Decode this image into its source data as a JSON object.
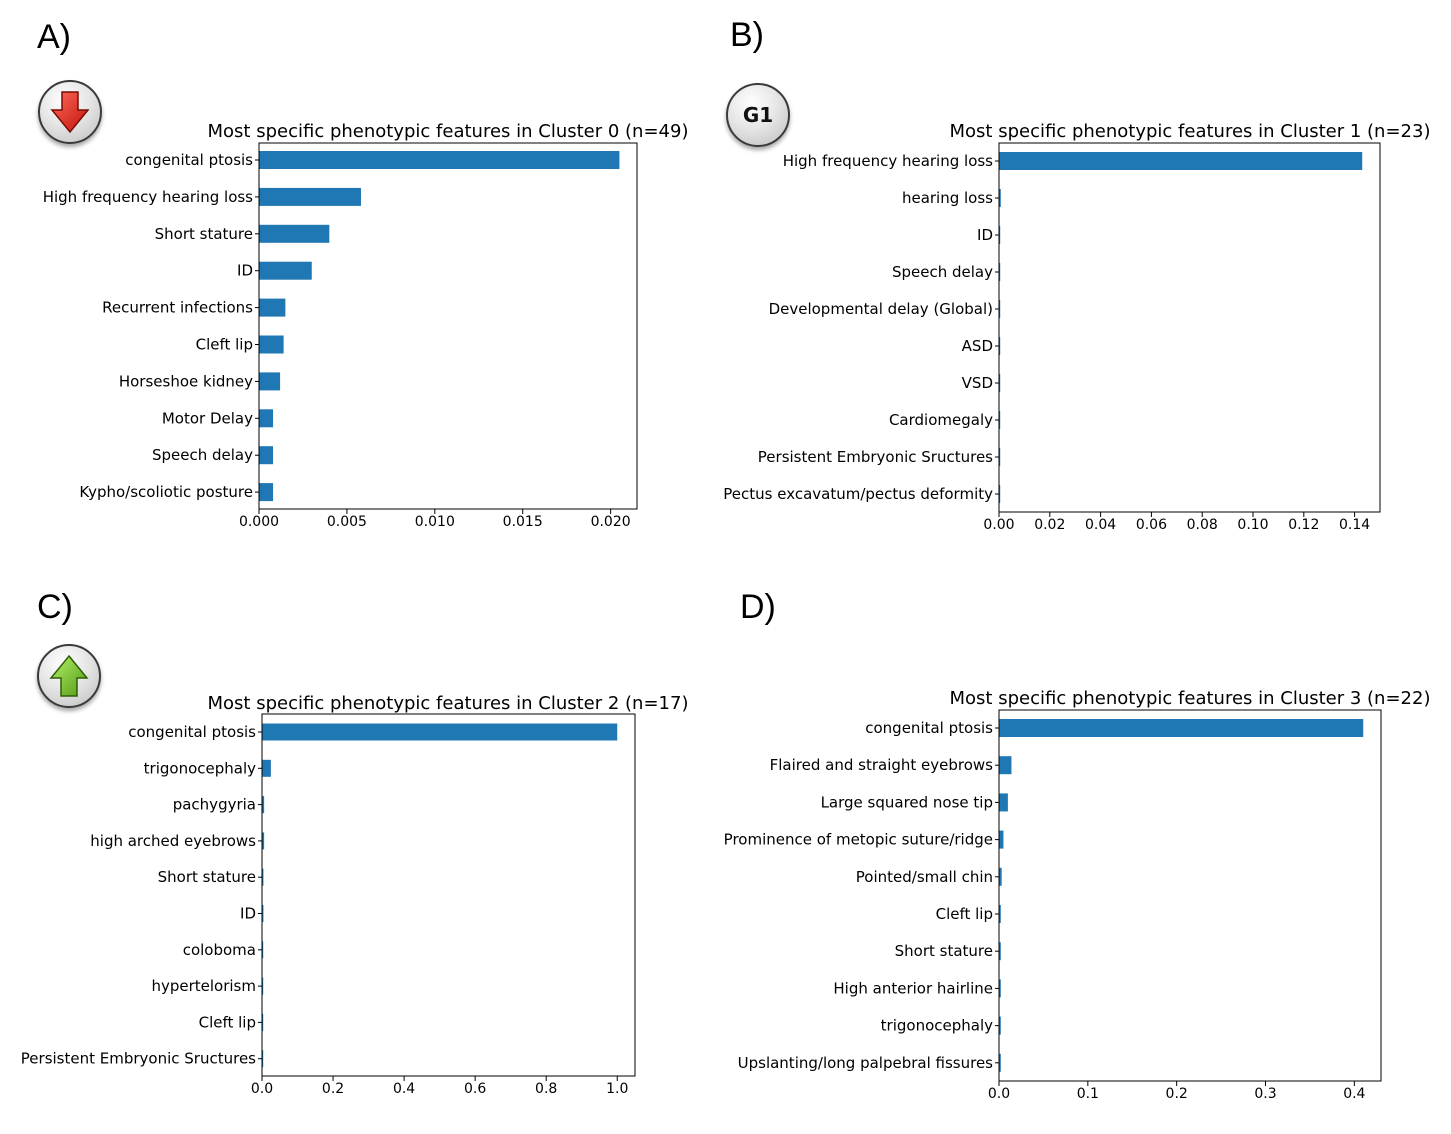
{
  "panels": {
    "a": {
      "letter": "A)"
    },
    "b": {
      "letter": "B)",
      "badge": "G1"
    },
    "c": {
      "letter": "C)"
    },
    "d": {
      "letter": "D)"
    }
  },
  "icons": {
    "a": "red-down-arrow-icon",
    "b": "g1-badge-icon",
    "c": "green-up-arrow-icon"
  },
  "colors": {
    "bar": "#1f77b4"
  },
  "chart_data": [
    {
      "type": "bar",
      "orientation": "horizontal",
      "title": "Most specific phenotypic features in Cluster 0 (n=49)",
      "categories": [
        "congenital ptosis",
        "High frequency hearing loss",
        "Short stature",
        "ID",
        "Recurrent infections",
        "Cleft lip",
        "Horseshoe kidney",
        "Motor Delay",
        "Speech delay",
        "Kypho/scoliotic posture"
      ],
      "values": [
        0.0205,
        0.0058,
        0.004,
        0.003,
        0.0015,
        0.0014,
        0.0012,
        0.0008,
        0.0008,
        0.0008
      ],
      "xticks": [
        "0.000",
        "0.005",
        "0.010",
        "0.015",
        "0.020"
      ],
      "xtick_values": [
        0,
        0.005,
        0.01,
        0.015,
        0.02
      ],
      "xlim": [
        0,
        0.0215
      ],
      "grid": false
    },
    {
      "type": "bar",
      "orientation": "horizontal",
      "title": "Most specific phenotypic features in Cluster 1 (n=23)",
      "categories": [
        "High frequency hearing loss",
        "hearing loss",
        "ID",
        "Speech delay",
        "Developmental delay (Global)",
        "ASD",
        "VSD",
        "Cardiomegaly",
        "Persistent Embryonic Sructures",
        "Pectus excavatum/pectus deformity"
      ],
      "values": [
        0.143,
        0.0007,
        0.0001,
        0.0001,
        0.0001,
        0.0001,
        0.0001,
        0.0001,
        0.0001,
        0.0001
      ],
      "xticks": [
        "0.00",
        "0.02",
        "0.04",
        "0.06",
        "0.08",
        "0.10",
        "0.12",
        "0.14"
      ],
      "xtick_values": [
        0,
        0.02,
        0.04,
        0.06,
        0.08,
        0.1,
        0.12,
        0.14
      ],
      "xlim": [
        0,
        0.15
      ],
      "grid": false
    },
    {
      "type": "bar",
      "orientation": "horizontal",
      "title": "Most specific phenotypic features in Cluster 2 (n=17)",
      "categories": [
        "congenital ptosis",
        "trigonocephaly",
        "pachygyria",
        "high arched eyebrows",
        "Short stature",
        "ID",
        "coloboma",
        "hypertelorism",
        "Cleft lip",
        "Persistent Embryonic Sructures"
      ],
      "values": [
        1.0,
        0.025,
        0.006,
        0.006,
        0.004,
        0.004,
        0.001,
        0.001,
        0.001,
        0.001
      ],
      "xticks": [
        "0.0",
        "0.2",
        "0.4",
        "0.6",
        "0.8",
        "1.0"
      ],
      "xtick_values": [
        0,
        0.2,
        0.4,
        0.6,
        0.8,
        1.0
      ],
      "xlim": [
        0,
        1.05
      ],
      "grid": false
    },
    {
      "type": "bar",
      "orientation": "horizontal",
      "title": "Most specific phenotypic features in Cluster 3 (n=22)",
      "categories": [
        "congenital ptosis",
        "Flaired and straight eyebrows",
        "Large squared nose tip",
        "Prominence of metopic suture/ridge",
        "Pointed/small chin",
        "Cleft lip",
        "Short stature",
        "High anterior hairline",
        "trigonocephaly",
        "Upslanting/long palpebral fissures"
      ],
      "values": [
        0.41,
        0.014,
        0.01,
        0.005,
        0.003,
        0.002,
        0.002,
        0.002,
        0.002,
        0.002
      ],
      "xticks": [
        "0.0",
        "0.1",
        "0.2",
        "0.3",
        "0.4"
      ],
      "xtick_values": [
        0,
        0.1,
        0.2,
        0.3,
        0.4
      ],
      "xlim": [
        0,
        0.43
      ],
      "grid": false
    }
  ]
}
